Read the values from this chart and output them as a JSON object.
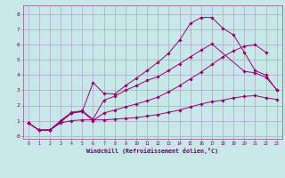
{
  "background_color": "#c8e8e8",
  "grid_color": "#aaaacc",
  "line_color": "#990077",
  "xlabel": "Windchill (Refroidissement éolien,°C)",
  "ylabel_ticks": [
    0,
    1,
    2,
    3,
    4,
    5,
    6,
    7,
    8
  ],
  "xlim": [
    -0.5,
    23.5
  ],
  "ylim": [
    -0.2,
    8.6
  ],
  "series": [
    {
      "x": [
        0,
        1,
        2,
        3,
        4,
        5,
        6,
        7,
        8,
        9,
        10,
        11,
        12,
        13,
        14,
        15,
        16,
        17,
        18,
        19,
        20,
        21,
        22,
        23
      ],
      "y": [
        0.85,
        0.38,
        0.38,
        0.85,
        1.0,
        1.05,
        1.05,
        1.05,
        1.1,
        1.15,
        1.2,
        1.3,
        1.4,
        1.55,
        1.7,
        1.9,
        2.1,
        2.25,
        2.35,
        2.5,
        2.6,
        2.65,
        2.5,
        2.4
      ]
    },
    {
      "x": [
        0,
        1,
        2,
        3,
        4,
        5,
        6,
        7,
        8,
        9,
        10,
        11,
        12,
        13,
        14,
        15,
        16,
        17,
        18,
        19,
        20,
        21,
        22
      ],
      "y": [
        0.85,
        0.38,
        0.38,
        0.9,
        1.5,
        1.6,
        1.0,
        1.5,
        1.7,
        1.9,
        2.1,
        2.3,
        2.55,
        2.9,
        3.3,
        3.75,
        4.2,
        4.7,
        5.2,
        5.6,
        5.9,
        6.0,
        5.5
      ]
    },
    {
      "x": [
        0,
        1,
        2,
        3,
        4,
        5,
        6,
        7,
        8,
        9,
        10,
        11,
        12,
        13,
        14,
        15,
        16,
        17,
        18,
        19,
        20,
        21,
        22,
        23
      ],
      "y": [
        0.85,
        0.38,
        0.38,
        0.95,
        1.5,
        1.6,
        3.5,
        2.8,
        2.75,
        3.3,
        3.8,
        4.3,
        4.85,
        5.45,
        6.3,
        7.4,
        7.8,
        7.8,
        7.1,
        6.65,
        5.5,
        4.3,
        4.0,
        3.0
      ]
    },
    {
      "x": [
        0,
        1,
        2,
        3,
        4,
        5,
        6,
        7,
        8,
        9,
        10,
        11,
        12,
        13,
        14,
        15,
        16,
        17,
        20,
        21,
        22,
        23
      ],
      "y": [
        0.85,
        0.38,
        0.38,
        1.0,
        1.55,
        1.65,
        1.1,
        2.35,
        2.6,
        3.0,
        3.3,
        3.65,
        3.9,
        4.3,
        4.75,
        5.2,
        5.65,
        6.05,
        4.25,
        4.15,
        3.85,
        3.05
      ]
    }
  ]
}
